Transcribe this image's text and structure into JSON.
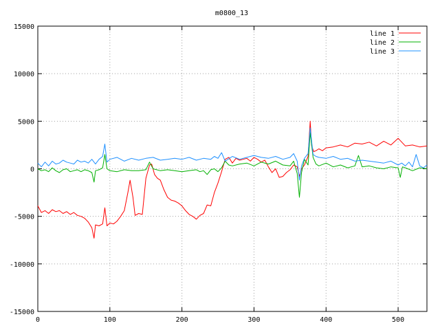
{
  "chart_data": {
    "type": "line",
    "title": "m0800_13",
    "xlabel": "",
    "ylabel": "",
    "xlim": [
      0,
      540
    ],
    "ylim": [
      -15000,
      15000
    ],
    "xticks": [
      0,
      100,
      200,
      300,
      400,
      500
    ],
    "yticks": [
      -15000,
      -10000,
      -5000,
      0,
      5000,
      10000,
      15000
    ],
    "grid": true,
    "legend_position": "top-right",
    "series": [
      {
        "name": "line 1",
        "color": "#ff0000",
        "x": [
          0,
          5,
          10,
          15,
          20,
          25,
          30,
          35,
          40,
          45,
          50,
          55,
          60,
          65,
          70,
          75,
          78,
          80,
          85,
          90,
          93,
          96,
          100,
          105,
          110,
          115,
          120,
          125,
          128,
          132,
          135,
          140,
          145,
          150,
          155,
          158,
          162,
          166,
          170,
          175,
          180,
          185,
          190,
          195,
          200,
          205,
          210,
          215,
          220,
          225,
          230,
          235,
          240,
          245,
          250,
          255,
          260,
          265,
          270,
          275,
          280,
          285,
          290,
          295,
          300,
          305,
          310,
          315,
          320,
          325,
          330,
          335,
          340,
          345,
          350,
          355,
          360,
          363,
          366,
          370,
          375,
          378,
          380,
          383,
          386,
          390,
          395,
          400,
          410,
          420,
          430,
          440,
          450,
          460,
          470,
          480,
          490,
          500,
          510,
          520,
          530,
          540
        ],
        "y": [
          -3900,
          -4600,
          -4400,
          -4700,
          -4300,
          -4500,
          -4400,
          -4700,
          -4500,
          -4800,
          -4600,
          -4900,
          -5000,
          -5200,
          -5600,
          -6200,
          -7300,
          -5900,
          -6000,
          -5800,
          -4100,
          -6000,
          -5700,
          -5800,
          -5500,
          -5000,
          -4400,
          -2500,
          -1200,
          -3000,
          -4900,
          -4700,
          -4800,
          -1000,
          400,
          500,
          -600,
          -1000,
          -1200,
          -2200,
          -3000,
          -3300,
          -3400,
          -3600,
          -3900,
          -4400,
          -4800,
          -5000,
          -5300,
          -4900,
          -4700,
          -3800,
          -3900,
          -2500,
          -1500,
          -300,
          1000,
          1200,
          600,
          1100,
          900,
          1000,
          1100,
          800,
          1200,
          1000,
          700,
          900,
          200,
          -400,
          0,
          -900,
          -800,
          -400,
          -100,
          400,
          200,
          -800,
          0,
          400,
          1300,
          5000,
          2400,
          1800,
          1900,
          2100,
          1900,
          2200,
          2300,
          2500,
          2300,
          2700,
          2600,
          2800,
          2400,
          2900,
          2500,
          3200,
          2400,
          2500,
          2300,
          2400
        ]
      },
      {
        "name": "line 2",
        "color": "#00b000",
        "x": [
          0,
          5,
          10,
          15,
          20,
          25,
          30,
          35,
          40,
          45,
          50,
          55,
          60,
          65,
          70,
          75,
          78,
          80,
          85,
          90,
          93,
          96,
          100,
          110,
          120,
          130,
          140,
          150,
          155,
          160,
          170,
          180,
          190,
          200,
          210,
          220,
          225,
          230,
          235,
          240,
          245,
          250,
          255,
          260,
          265,
          270,
          280,
          290,
          300,
          310,
          320,
          330,
          340,
          350,
          355,
          360,
          363,
          366,
          370,
          375,
          378,
          382,
          386,
          390,
          400,
          410,
          420,
          430,
          440,
          445,
          450,
          460,
          470,
          480,
          490,
          500,
          503,
          506,
          510,
          520,
          530,
          540
        ],
        "y": [
          0,
          -200,
          -100,
          -300,
          100,
          -200,
          -400,
          -100,
          0,
          -300,
          -200,
          -100,
          -300,
          -100,
          -200,
          -400,
          -1400,
          -200,
          -100,
          100,
          1500,
          0,
          -200,
          -300,
          -100,
          -200,
          -200,
          -100,
          700,
          0,
          -200,
          -100,
          -200,
          -300,
          -200,
          -100,
          -300,
          -200,
          -600,
          -100,
          0,
          -300,
          100,
          800,
          400,
          300,
          500,
          600,
          300,
          700,
          500,
          800,
          400,
          300,
          800,
          -500,
          -3000,
          -400,
          1000,
          400,
          3800,
          1200,
          500,
          300,
          600,
          200,
          400,
          100,
          300,
          1400,
          200,
          300,
          100,
          0,
          200,
          100,
          -900,
          200,
          100,
          -200,
          100,
          0
        ]
      },
      {
        "name": "line 3",
        "color": "#1e90ff",
        "x": [
          0,
          5,
          10,
          15,
          20,
          25,
          30,
          35,
          40,
          45,
          50,
          55,
          60,
          65,
          70,
          75,
          80,
          85,
          90,
          93,
          96,
          100,
          110,
          120,
          130,
          140,
          150,
          160,
          170,
          180,
          190,
          200,
          210,
          220,
          230,
          240,
          245,
          250,
          255,
          260,
          270,
          280,
          290,
          300,
          310,
          320,
          330,
          340,
          350,
          355,
          360,
          363,
          366,
          370,
          375,
          378,
          382,
          386,
          390,
          400,
          410,
          420,
          430,
          440,
          450,
          460,
          470,
          480,
          490,
          500,
          505,
          510,
          515,
          520,
          525,
          530,
          535,
          540
        ],
        "y": [
          600,
          200,
          700,
          300,
          800,
          500,
          600,
          900,
          700,
          600,
          500,
          900,
          700,
          800,
          600,
          1000,
          500,
          1000,
          1300,
          2600,
          700,
          1000,
          1200,
          800,
          1100,
          900,
          1100,
          1200,
          900,
          1000,
          1100,
          1000,
          1200,
          900,
          1100,
          1000,
          1300,
          1100,
          1700,
          800,
          1300,
          1000,
          1200,
          1400,
          1200,
          1100,
          1300,
          1000,
          1200,
          1600,
          800,
          -1200,
          300,
          1100,
          1600,
          4300,
          1500,
          1300,
          1200,
          1100,
          1300,
          1000,
          1100,
          800,
          900,
          800,
          700,
          600,
          800,
          400,
          600,
          300,
          700,
          200,
          1500,
          300,
          100,
          400
        ]
      }
    ]
  }
}
